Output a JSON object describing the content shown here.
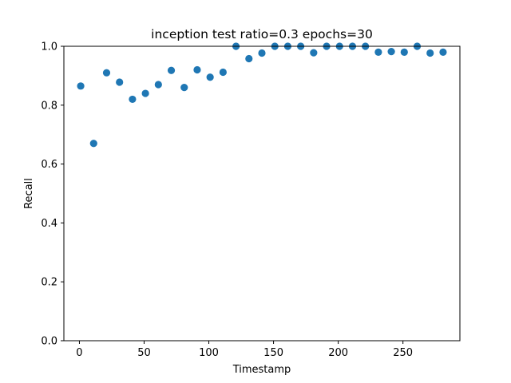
{
  "chart_data": {
    "type": "scatter",
    "title": "inception test ratio=0.3 epochs=30",
    "xlabel": "Timestamp",
    "ylabel": "Recall",
    "xlim": [
      -12,
      294
    ],
    "ylim": [
      0.0,
      1.0
    ],
    "x_ticks": [
      0,
      50,
      100,
      150,
      200,
      250
    ],
    "y_ticks": [
      0.0,
      0.2,
      0.4,
      0.6,
      0.8,
      1.0
    ],
    "x_tick_labels": [
      "0",
      "50",
      "100",
      "150",
      "200",
      "250"
    ],
    "y_tick_labels": [
      "0.0",
      "0.2",
      "0.4",
      "0.6",
      "0.8",
      "1.0"
    ],
    "grid": false,
    "marker_color": "#1f77b4",
    "series": [
      {
        "x": [
          1,
          11,
          21,
          31,
          41,
          51,
          61,
          71,
          81,
          91,
          101,
          111,
          121,
          131,
          141,
          151,
          161,
          171,
          181,
          191,
          201,
          211,
          221,
          231,
          241,
          251,
          261,
          271,
          281
        ],
        "y": [
          0.865,
          0.67,
          0.91,
          0.878,
          0.82,
          0.84,
          0.87,
          0.918,
          0.86,
          0.92,
          0.895,
          0.912,
          1.0,
          0.958,
          0.977,
          1.0,
          1.0,
          1.0,
          0.978,
          1.0,
          1.0,
          1.0,
          1.0,
          0.98,
          0.982,
          0.98,
          1.0,
          0.977,
          0.98
        ]
      }
    ]
  }
}
